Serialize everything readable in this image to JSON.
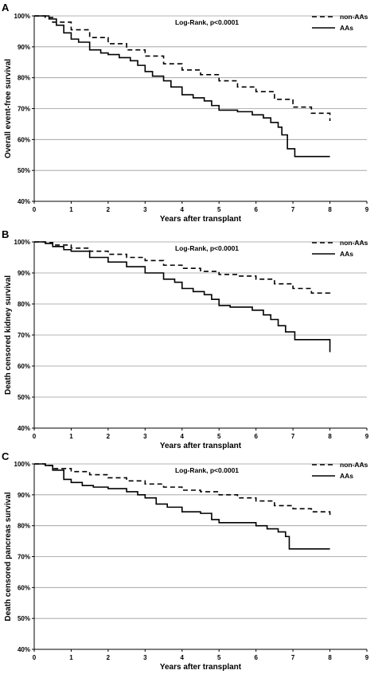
{
  "chart_data": [
    {
      "type": "line",
      "panel": "A",
      "ylabel": "Overall event-free survival",
      "xlabel": "Years  after transplant",
      "annotation": "Log-Rank, p<0.0001",
      "xlim": [
        0,
        9
      ],
      "ylim": [
        40,
        100
      ],
      "x_ticks": [
        "0",
        "1",
        "2",
        "3",
        "4",
        "5",
        "6",
        "7",
        "8",
        "9"
      ],
      "y_ticks": [
        "40%",
        "50%",
        "60%",
        "70%",
        "80%",
        "90%",
        "100%"
      ],
      "grid": "horizontal",
      "legend": "top-right",
      "series": [
        {
          "name": "non-AAs",
          "style": "dashed",
          "color": "#000000",
          "x": [
            0,
            0.3,
            0.5,
            1,
            1.5,
            2,
            2.5,
            3,
            3.5,
            4,
            4.5,
            5,
            5.5,
            6,
            6.5,
            7,
            7.5,
            8
          ],
          "y": [
            100,
            99.5,
            98,
            95.5,
            93,
            91,
            89,
            87,
            84.5,
            82.5,
            81,
            79,
            77,
            75.5,
            73,
            70.5,
            68.5,
            66
          ]
        },
        {
          "name": "AAs",
          "style": "solid",
          "color": "#000000",
          "x": [
            0,
            0.4,
            0.6,
            0.8,
            1,
            1.2,
            1.5,
            1.8,
            2,
            2.3,
            2.6,
            2.8,
            3,
            3.2,
            3.5,
            3.7,
            4,
            4.3,
            4.6,
            4.8,
            5,
            5.5,
            5.9,
            6.2,
            6.4,
            6.6,
            6.7,
            6.85,
            7.05,
            7.5,
            8
          ],
          "y": [
            100,
            99,
            97,
            94.5,
            92.5,
            91.5,
            89,
            88,
            87.5,
            86.5,
            85.5,
            84,
            82,
            80.5,
            79,
            77,
            74.5,
            73.5,
            72.5,
            71,
            69.5,
            69,
            68,
            67,
            65.5,
            64,
            61.5,
            57,
            54.5,
            54.5,
            54.5
          ]
        }
      ]
    },
    {
      "type": "line",
      "panel": "B",
      "ylabel": "Death censored kidney survival",
      "xlabel": "Years  after transplant",
      "annotation": "Log-Rank, p<0.0001",
      "xlim": [
        0,
        9
      ],
      "ylim": [
        40,
        100
      ],
      "x_ticks": [
        "0",
        "1",
        "2",
        "3",
        "4",
        "5",
        "6",
        "7",
        "8",
        "9"
      ],
      "y_ticks": [
        "40%",
        "50%",
        "60%",
        "70%",
        "80%",
        "90%",
        "100%"
      ],
      "grid": "horizontal",
      "legend": "top-right",
      "series": [
        {
          "name": "non-AAs",
          "style": "dashed",
          "color": "#000000",
          "x": [
            0,
            0.3,
            0.5,
            1,
            1.5,
            2,
            2.5,
            3,
            3.5,
            4,
            4.5,
            5,
            5.5,
            6,
            6.5,
            7,
            7.5,
            8
          ],
          "y": [
            100,
            99.8,
            99,
            98,
            97,
            96,
            95,
            94,
            92.5,
            91.5,
            90.5,
            89.5,
            89,
            88,
            86.5,
            85,
            83.5,
            83
          ]
        },
        {
          "name": "AAs",
          "style": "solid",
          "color": "#000000",
          "x": [
            0,
            0.3,
            0.5,
            0.8,
            1,
            1.5,
            2,
            2.5,
            3,
            3.5,
            3.8,
            4,
            4.3,
            4.6,
            4.8,
            5,
            5.3,
            5.9,
            6.2,
            6.4,
            6.6,
            6.8,
            7.05,
            7.5,
            7.95,
            8
          ],
          "y": [
            100,
            99.5,
            98.5,
            97.5,
            97,
            95,
            93.5,
            92,
            90,
            88,
            87,
            85,
            84,
            83,
            81.5,
            79.5,
            79,
            78,
            76.5,
            75,
            73,
            71,
            68.5,
            68.5,
            68.5,
            64.5
          ]
        }
      ]
    },
    {
      "type": "line",
      "panel": "C",
      "ylabel": "Death censored pancreas survival",
      "xlabel": "Years  after transplant",
      "annotation": "Log-Rank, p<0.0001",
      "xlim": [
        0,
        9
      ],
      "ylim": [
        40,
        100
      ],
      "x_ticks": [
        "0",
        "1",
        "2",
        "3",
        "4",
        "5",
        "6",
        "7",
        "8",
        "9"
      ],
      "y_ticks": [
        "40%",
        "50%",
        "60%",
        "70%",
        "80%",
        "90%",
        "100%"
      ],
      "grid": "horizontal",
      "legend": "top-right",
      "series": [
        {
          "name": "non-AAs",
          "style": "dashed",
          "color": "#000000",
          "x": [
            0,
            0.3,
            0.5,
            1,
            1.5,
            2,
            2.5,
            3,
            3.5,
            4,
            4.5,
            5,
            5.5,
            6,
            6.5,
            7,
            7.5,
            8
          ],
          "y": [
            100,
            99.5,
            98.5,
            97.5,
            96.5,
            95.5,
            94.5,
            93.5,
            92.5,
            91.5,
            91,
            90,
            89,
            88,
            86.5,
            85.5,
            84.5,
            83.5
          ]
        },
        {
          "name": "AAs",
          "style": "solid",
          "color": "#000000",
          "x": [
            0,
            0.3,
            0.5,
            0.8,
            1,
            1.3,
            1.6,
            2,
            2.5,
            2.8,
            3,
            3.3,
            3.6,
            4,
            4.5,
            4.8,
            5,
            5.5,
            6,
            6.3,
            6.6,
            6.8,
            6.9,
            7.3,
            8
          ],
          "y": [
            100,
            99.5,
            98,
            95,
            94,
            93,
            92.5,
            92,
            91,
            90,
            89,
            87,
            86,
            84.5,
            84,
            82,
            81,
            81,
            80,
            79,
            78,
            76.5,
            72.5,
            72.5,
            72.5
          ]
        }
      ]
    }
  ]
}
